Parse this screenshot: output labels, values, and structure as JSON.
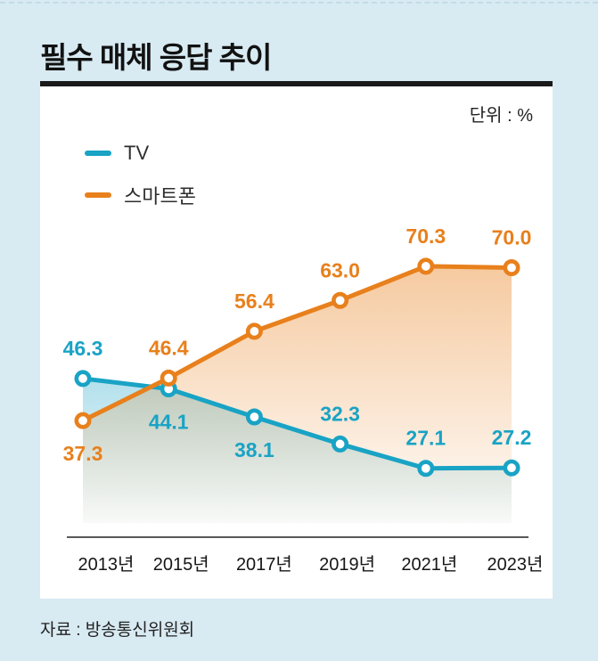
{
  "header": {
    "title": "필수 매체 응답 추이"
  },
  "chart_data": {
    "type": "line",
    "title": "필수 매체 응답 추이",
    "unit_label": "단위 : %",
    "categories": [
      "2013년",
      "2015년",
      "2017년",
      "2019년",
      "2021년",
      "2023년"
    ],
    "series": [
      {
        "name": "TV",
        "color": "#19a3c5",
        "values": [
          46.3,
          44.1,
          38.1,
          32.3,
          27.1,
          27.2
        ],
        "labels": [
          "46.3",
          "44.1",
          "38.1",
          "32.3",
          "27.1",
          "27.2"
        ],
        "label_side": [
          "above",
          "below",
          "below",
          "above",
          "above",
          "above"
        ]
      },
      {
        "name": "스마트폰",
        "color": "#e8801c",
        "values": [
          37.3,
          46.4,
          56.4,
          63.0,
          70.3,
          70.0
        ],
        "labels": [
          "37.3",
          "46.4",
          "56.4",
          "63.0",
          "70.3",
          "70.0"
        ],
        "label_side": [
          "below",
          "above",
          "above",
          "above",
          "above",
          "above"
        ]
      }
    ],
    "ylim": [
      0,
      80
    ],
    "grid": false,
    "legend_position": "top-left",
    "area_fill": true,
    "marker": "open-circle"
  },
  "footer": {
    "source": "자료 : 방송통신위원회"
  }
}
